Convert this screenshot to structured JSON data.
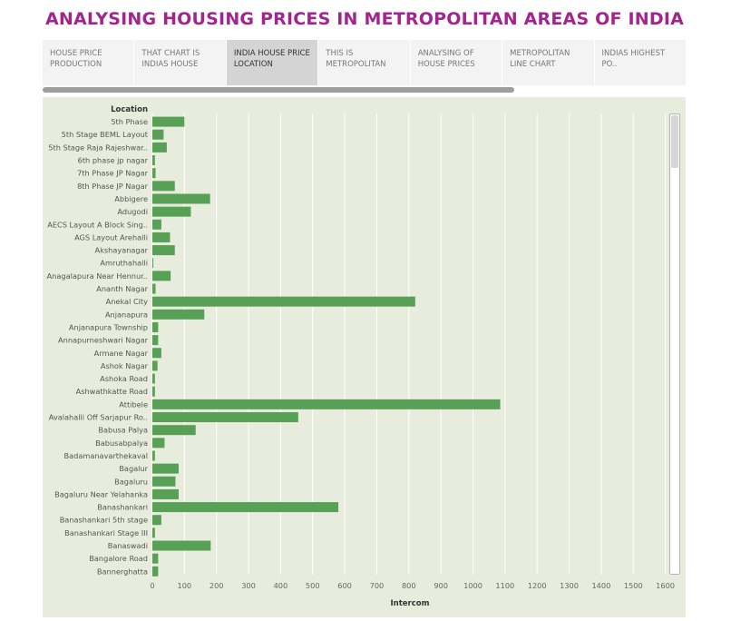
{
  "page_title": "ANALYSING HOUSING PRICES IN METROPOLITAN AREAS OF INDIA",
  "tabs": [
    {
      "label": "HOUSE PRICE PRODUCTION",
      "active": false
    },
    {
      "label": "THAT CHART IS INDIAS HOUSE PORICE PICE C..",
      "active": false
    },
    {
      "label": "INDIA HOUSE PRICE LOCATION",
      "active": true
    },
    {
      "label": "THIS IS METROPOLITAN ARE..",
      "active": false
    },
    {
      "label": "ANALYSING OF HOUSE PRICES",
      "active": false
    },
    {
      "label": "METROPOLITAN LINE CHART",
      "active": false
    },
    {
      "label": "INDIAS HIGHEST PO..",
      "active": false
    }
  ],
  "colors": {
    "bar": "#57a055",
    "title": "#a4248f",
    "panel": "#e8ecdc"
  },
  "chart_data": {
    "type": "bar",
    "orientation": "horizontal",
    "row_header": "Location",
    "xlabel": "Intercom",
    "xlim": [
      0,
      1600
    ],
    "x_ticks": [
      0,
      100,
      200,
      300,
      400,
      500,
      600,
      700,
      800,
      900,
      1000,
      1100,
      1200,
      1300,
      1400,
      1500,
      1600
    ],
    "grid": true,
    "categories": [
      "5th Phase",
      "5th Stage BEML Layout",
      "5th Stage Raja Rajeshwar..",
      "6th phase jp nagar",
      "7th Phase JP Nagar",
      "8th Phase JP Nagar",
      "Abbigere",
      "Adugodi",
      "AECS Layout A Block Sing..",
      "AGS Layout Arehalli",
      "Akshayanagar",
      "Amruthahalli",
      "Anagalapura Near Hennur..",
      "Ananth Nagar",
      "Anekal City",
      "Anjanapura",
      "Anjanapura Township",
      "Annapurneshwari Nagar",
      "Armane Nagar",
      "Ashok Nagar",
      "Ashoka Road",
      "Ashwathkatte Road",
      "Attibele",
      "Avalahalli Off Sarjapur Ro..",
      "Babusa Palya",
      "Babusabpalya",
      "Badamanavarthekaval",
      "Bagalur",
      "Bagaluru",
      "Bagaluru Near Yelahanka",
      "Banashankari",
      "Banashankari 5th stage",
      "Banashankari Stage III",
      "Banaswadi",
      "Bangalore Road",
      "Bannerghatta"
    ],
    "values": [
      100,
      35,
      45,
      8,
      10,
      70,
      180,
      120,
      28,
      55,
      70,
      3,
      57,
      10,
      820,
      162,
      18,
      18,
      28,
      16,
      8,
      8,
      1085,
      455,
      135,
      38,
      8,
      82,
      72,
      82,
      580,
      28,
      8,
      182,
      18,
      18
    ]
  }
}
